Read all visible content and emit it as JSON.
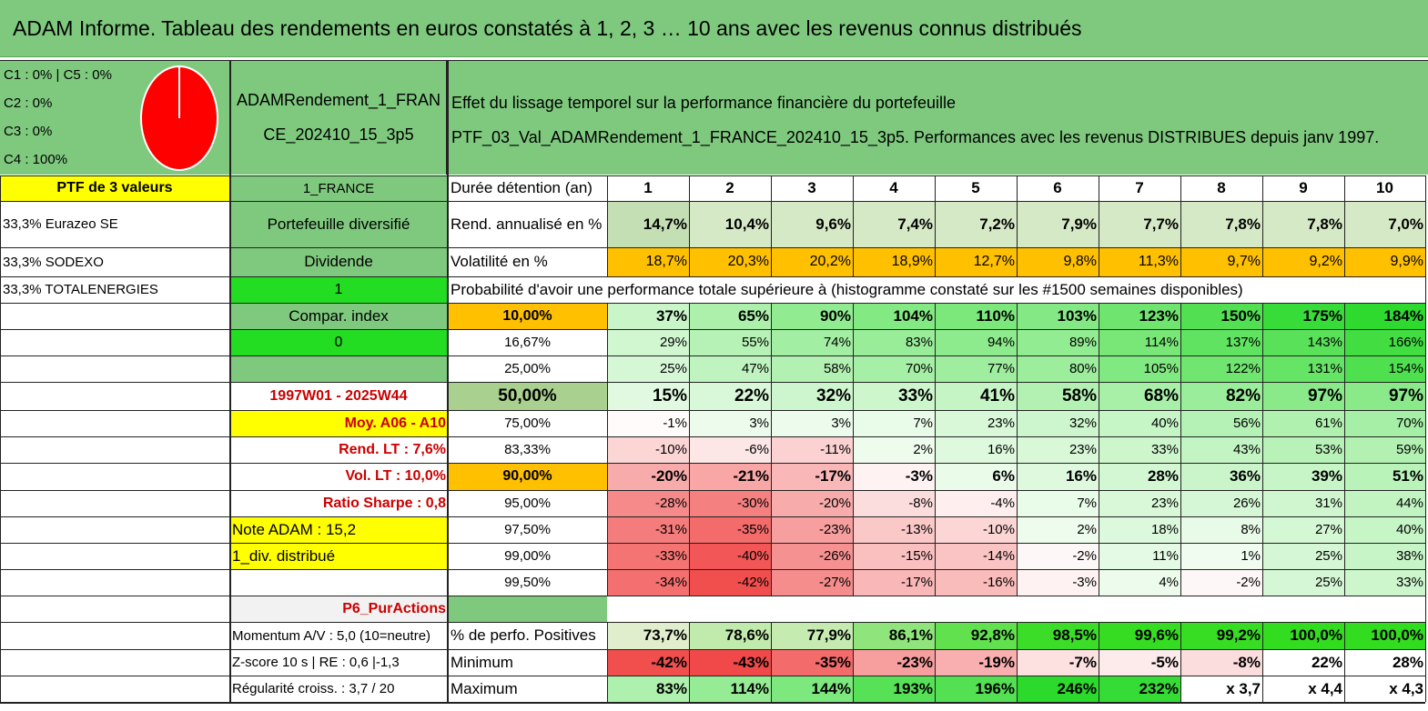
{
  "title": "ADAM Informe. Tableau des rendements en euros constatés à 1, 2, 3 … 10 ans avec les revenus connus distribués",
  "allocation": [
    "C1 : 0% | C5 : 0%",
    "C2 : 0%",
    "C3 : 0%",
    "C4 : 100%"
  ],
  "pie": {
    "slices": [
      {
        "label": "C4",
        "value": 100,
        "color": "#ff0000"
      }
    ]
  },
  "portfolio_name": [
    "ADAMRendement_1_FRAN",
    "CE_202410_15_3p5"
  ],
  "description": [
    "Effet du lissage temporel sur la performance financière du portefeuille",
    "PTF_03_Val_ADAMRendement_1_FRANCE_202410_15_3p5. Performances avec les revenus DISTRIBUES depuis janv 1997."
  ],
  "col_a": [
    "PTF de 3 valeurs",
    "33,3% Eurazeo SE",
    "33,3% SODEXO",
    "33,3% TOTALENERGIES",
    "Note ADAM : 15,2",
    "1_div. distribué"
  ],
  "col_b": {
    "country": "1_FRANCE",
    "diversified": "Portefeuille diversifié",
    "dividend": "Dividende",
    "one": "1",
    "compar": "Compar. index",
    "zero": "0",
    "period": "1997W01 - 2025W44",
    "moy": "Moy. A06 - A10",
    "rend_lt": "Rend. LT : 7,6%",
    "vol_lt": "Vol. LT : 10,0%",
    "sharpe": "Ratio Sharpe : 0,8",
    "style": "P6_PurActions",
    "momentum": "Momentum A/V : 5,0 (10=neutre)",
    "zscore": "Z-score 10 s | RE : 0,6 |-1,3",
    "regularite": "Régularité croiss. : 3,7 / 20"
  },
  "labels": {
    "duree": "Durée détention (an)",
    "rend": "Rend. annualisé en %",
    "vol": "Volatilité en %",
    "proba": "Probabilité d'avoir une performance totale supérieure à (histogramme constaté sur les #1500 semaines disponibles)",
    "positives": "% de perfo. Positives",
    "minimum": "Minimum",
    "maximum": "Maximum"
  },
  "years": [
    "1",
    "2",
    "3",
    "4",
    "5",
    "6",
    "7",
    "8",
    "9",
    "10"
  ],
  "rend_values": [
    "14,7%",
    "10,4%",
    "9,6%",
    "7,4%",
    "7,2%",
    "7,9%",
    "7,7%",
    "7,8%",
    "7,8%",
    "7,0%"
  ],
  "vol_values": [
    "18,7%",
    "20,3%",
    "20,2%",
    "18,9%",
    "12,7%",
    "9,8%",
    "11,3%",
    "9,7%",
    "9,2%",
    "9,9%"
  ],
  "prob_rows": [
    {
      "label": "10,00%",
      "values": [
        "37%",
        "65%",
        "90%",
        "104%",
        "110%",
        "103%",
        "123%",
        "150%",
        "175%",
        "184%"
      ]
    },
    {
      "label": "16,67%",
      "values": [
        "29%",
        "55%",
        "74%",
        "83%",
        "94%",
        "89%",
        "114%",
        "137%",
        "143%",
        "166%"
      ]
    },
    {
      "label": "25,00%",
      "values": [
        "25%",
        "47%",
        "58%",
        "70%",
        "77%",
        "80%",
        "105%",
        "122%",
        "131%",
        "154%"
      ]
    },
    {
      "label": "50,00%",
      "values": [
        "15%",
        "22%",
        "32%",
        "33%",
        "41%",
        "58%",
        "68%",
        "82%",
        "97%",
        "97%"
      ]
    },
    {
      "label": "75,00%",
      "values": [
        "-1%",
        "3%",
        "3%",
        "7%",
        "23%",
        "32%",
        "40%",
        "56%",
        "61%",
        "70%"
      ]
    },
    {
      "label": "83,33%",
      "values": [
        "-10%",
        "-6%",
        "-11%",
        "2%",
        "16%",
        "23%",
        "33%",
        "43%",
        "53%",
        "59%"
      ]
    },
    {
      "label": "90,00%",
      "values": [
        "-20%",
        "-21%",
        "-17%",
        "-3%",
        "6%",
        "16%",
        "28%",
        "36%",
        "39%",
        "51%"
      ]
    },
    {
      "label": "95,00%",
      "values": [
        "-28%",
        "-30%",
        "-20%",
        "-8%",
        "-4%",
        "7%",
        "23%",
        "26%",
        "31%",
        "44%"
      ]
    },
    {
      "label": "97,50%",
      "values": [
        "-31%",
        "-35%",
        "-23%",
        "-13%",
        "-10%",
        "2%",
        "18%",
        "8%",
        "27%",
        "40%"
      ]
    },
    {
      "label": "99,00%",
      "values": [
        "-33%",
        "-40%",
        "-26%",
        "-15%",
        "-14%",
        "-2%",
        "11%",
        "1%",
        "25%",
        "38%"
      ]
    },
    {
      "label": "99,50%",
      "values": [
        "-34%",
        "-42%",
        "-27%",
        "-17%",
        "-16%",
        "-3%",
        "4%",
        "-2%",
        "25%",
        "33%"
      ]
    }
  ],
  "positives_values": [
    "73,7%",
    "78,6%",
    "77,9%",
    "86,1%",
    "92,8%",
    "98,5%",
    "99,6%",
    "99,2%",
    "100,0%",
    "100,0%"
  ],
  "minimum_values": [
    "-42%",
    "-43%",
    "-35%",
    "-23%",
    "-19%",
    "-7%",
    "-5%",
    "-8%",
    "22%",
    "28%"
  ],
  "maximum_values": [
    "83%",
    "114%",
    "144%",
    "193%",
    "196%",
    "246%",
    "232%",
    "x 3,7",
    "x 4,4",
    "x 4,3"
  ],
  "colors": {
    "header_green": "#7fc97f",
    "yellow": "#ffff00",
    "bright_green": "#22dd22",
    "orange": "#ffc000",
    "red_text": "#cc0000",
    "pie_red": "#ff0000"
  }
}
